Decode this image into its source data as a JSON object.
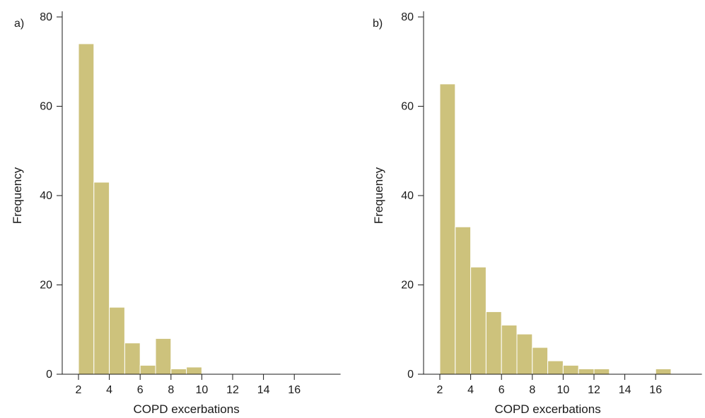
{
  "chart_data": [
    {
      "type": "bar",
      "panel_label": "a)",
      "xlabel": "COPD excerbations",
      "ylabel": "Frequency",
      "xlim": [
        1,
        19
      ],
      "ylim": [
        0,
        80
      ],
      "xticks": [
        2,
        4,
        6,
        8,
        10,
        12,
        14,
        16
      ],
      "yticks": [
        0,
        20,
        40,
        60,
        80
      ],
      "bin_width": 1,
      "bins": [
        {
          "x": 2,
          "value": 74
        },
        {
          "x": 3,
          "value": 43
        },
        {
          "x": 4,
          "value": 15
        },
        {
          "x": 5,
          "value": 7
        },
        {
          "x": 6,
          "value": 2
        },
        {
          "x": 7,
          "value": 8
        },
        {
          "x": 8,
          "value": 1.2
        },
        {
          "x": 9,
          "value": 1.6
        }
      ],
      "color": "#cdc27c",
      "grid": false
    },
    {
      "type": "bar",
      "panel_label": "b)",
      "xlabel": "COPD excerbations",
      "ylabel": "Frequency",
      "xlim": [
        1,
        19
      ],
      "ylim": [
        0,
        80
      ],
      "xticks": [
        2,
        4,
        6,
        8,
        10,
        12,
        14,
        16
      ],
      "yticks": [
        0,
        20,
        40,
        60,
        80
      ],
      "bin_width": 1,
      "bins": [
        {
          "x": 2,
          "value": 65
        },
        {
          "x": 3,
          "value": 33
        },
        {
          "x": 4,
          "value": 24
        },
        {
          "x": 5,
          "value": 14
        },
        {
          "x": 6,
          "value": 11
        },
        {
          "x": 7,
          "value": 9
        },
        {
          "x": 8,
          "value": 6
        },
        {
          "x": 9,
          "value": 3
        },
        {
          "x": 10,
          "value": 2
        },
        {
          "x": 11,
          "value": 1.2
        },
        {
          "x": 12,
          "value": 1.2
        },
        {
          "x": 16,
          "value": 1.2
        }
      ],
      "color": "#cdc27c",
      "grid": false
    }
  ]
}
